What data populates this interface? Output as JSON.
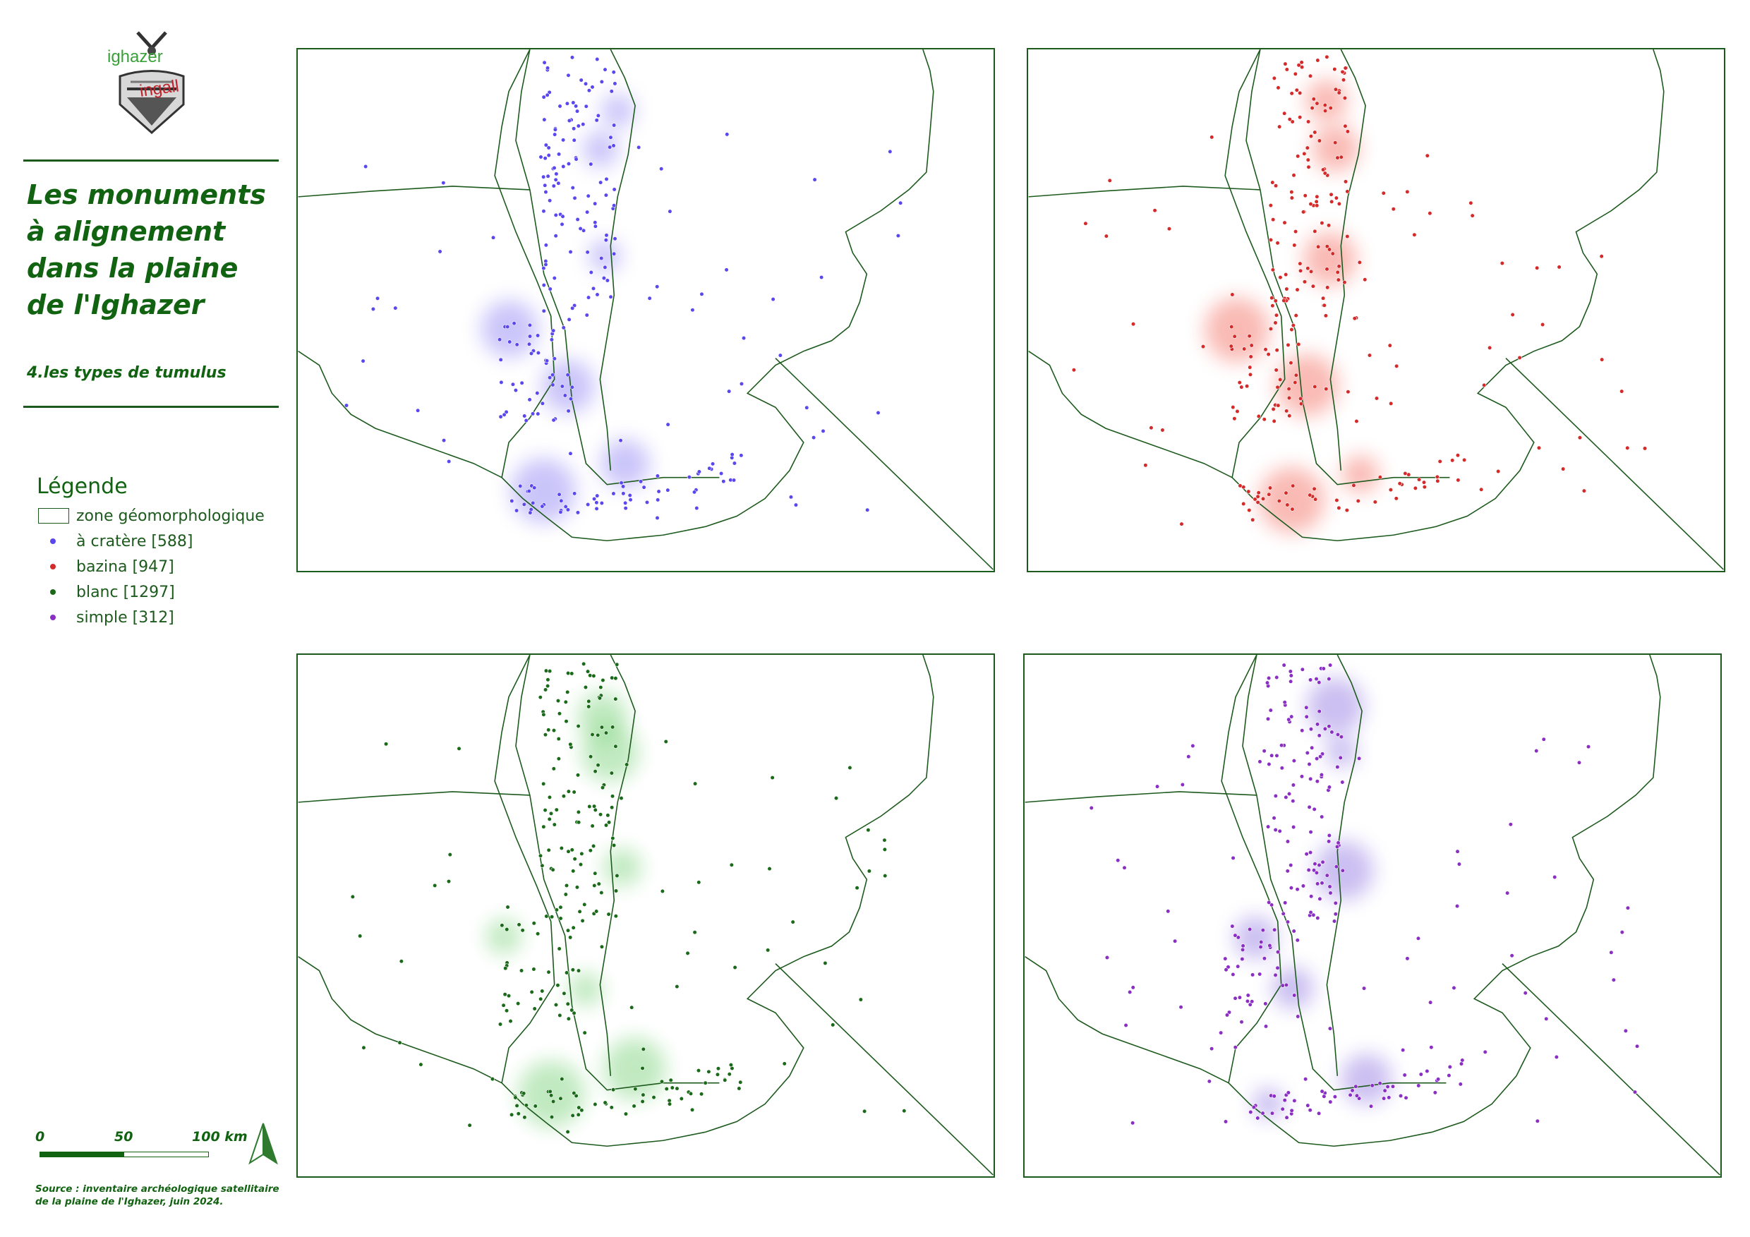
{
  "logo": {
    "word_top": "ighazer",
    "word_bottom": "ingall",
    "color_top": "#3aa03a",
    "color_bottom": "#c0202a"
  },
  "title": "Les monuments à alignement dans la plaine de l'Ighazer",
  "subtitle": "4.les types de tumulus",
  "legend": {
    "title": "Légende",
    "items": [
      {
        "label": "zone géomorphologique",
        "symbol": "box",
        "color": "#1d5a1d"
      },
      {
        "label": "à cratère [588]",
        "symbol": "dot",
        "color": "#5a48ee"
      },
      {
        "label": "bazina [947]",
        "symbol": "dot",
        "color": "#d42a2a"
      },
      {
        "label": "blanc [1297]",
        "symbol": "dot",
        "color": "#1a6a1a"
      },
      {
        "label": "simple [312]",
        "symbol": "dot",
        "color": "#8a2ec4"
      }
    ]
  },
  "scale": {
    "labels": [
      "0",
      "50",
      "100 km"
    ]
  },
  "north_arrow": {
    "icon": "north-arrow-icon"
  },
  "source": "Source : inventaire archéologique satellitaire de la plaine de l'Ighazer, juin 2024.",
  "maps": [
    {
      "id": "cratere",
      "color": "#5a48ee",
      "glow": "#6a5cf0"
    },
    {
      "id": "bazina",
      "color": "#d42a2a",
      "glow": "#f03a2a"
    },
    {
      "id": "blanc",
      "color": "#1a6a1a",
      "glow": "#4ec24e"
    },
    {
      "id": "simple",
      "color": "#8a2ec4",
      "glow": "#6a4ad8"
    }
  ]
}
